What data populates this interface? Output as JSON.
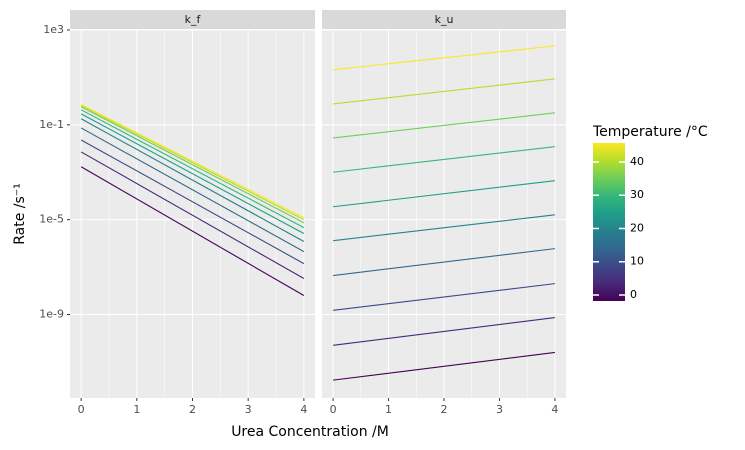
{
  "chart_data": {
    "type": "line",
    "log_y": true,
    "grid": true,
    "x_label": "Urea Concentration /M",
    "y_label": "Rate /s⁻¹",
    "x": [
      0,
      4
    ],
    "xlim": [
      -0.2,
      4.2
    ],
    "xticks": [
      0,
      1,
      2,
      3,
      4
    ],
    "ylim": [
      3e-13,
      1000
    ],
    "yticks": [
      {
        "value": 1000,
        "label": "1e3"
      },
      {
        "value": 0.1,
        "label": "1e-1"
      },
      {
        "value": 1e-05,
        "label": "1e-5"
      },
      {
        "value": 1e-09,
        "label": "1e-9"
      }
    ],
    "colorbar": {
      "title": "Temperature /°C",
      "lim": [
        -1.8,
        45.7
      ],
      "ticks": [
        0,
        10,
        20,
        30,
        40
      ],
      "colors": [
        "#440154",
        "#482878",
        "#3e4989",
        "#31688e",
        "#26828e",
        "#1f9e89",
        "#35b779",
        "#6ece58",
        "#b5de2b",
        "#fde725"
      ]
    },
    "facets": [
      {
        "title": "k_f",
        "series": [
          {
            "color": "#440154",
            "values": [
              0.0017,
              6.3e-09
            ]
          },
          {
            "color": "#482878",
            "values": [
              0.0072,
              3.3e-08
            ]
          },
          {
            "color": "#3e4989",
            "values": [
              0.023,
              1.4e-07
            ]
          },
          {
            "color": "#31688e",
            "values": [
              0.074,
              4.5e-07
            ]
          },
          {
            "color": "#26828e",
            "values": [
              0.18,
              1.2e-06
            ]
          },
          {
            "color": "#1f9e89",
            "values": [
              0.29,
              2.6e-06
            ]
          },
          {
            "color": "#35b779",
            "values": [
              0.43,
              4.6e-06
            ]
          },
          {
            "color": "#6ece58",
            "values": [
              0.58,
              7.4e-06
            ]
          },
          {
            "color": "#b5de2b",
            "values": [
              0.66,
              1e-05
            ]
          },
          {
            "color": "#fde725",
            "values": [
              0.72,
              1.2e-05
            ]
          }
        ]
      },
      {
        "title": "k_u",
        "series": [
          {
            "color": "#440154",
            "values": [
              1.7e-12,
              2.5e-11
            ]
          },
          {
            "color": "#482878",
            "values": [
              5e-11,
              7.4e-10
            ]
          },
          {
            "color": "#3e4989",
            "values": [
              1.5e-09,
              2e-08
            ]
          },
          {
            "color": "#31688e",
            "values": [
              4.4e-08,
              6e-07
            ]
          },
          {
            "color": "#26828e",
            "values": [
              1.3e-06,
              1.6e-05
            ]
          },
          {
            "color": "#1f9e89",
            "values": [
              3.5e-05,
              0.00044
            ]
          },
          {
            "color": "#35b779",
            "values": [
              0.001,
              0.012
            ]
          },
          {
            "color": "#6ece58",
            "values": [
              0.028,
              0.32
            ]
          },
          {
            "color": "#b5de2b",
            "values": [
              0.76,
              8.7
            ]
          },
          {
            "color": "#fde725",
            "values": [
              21,
              214
            ]
          }
        ]
      }
    ]
  }
}
